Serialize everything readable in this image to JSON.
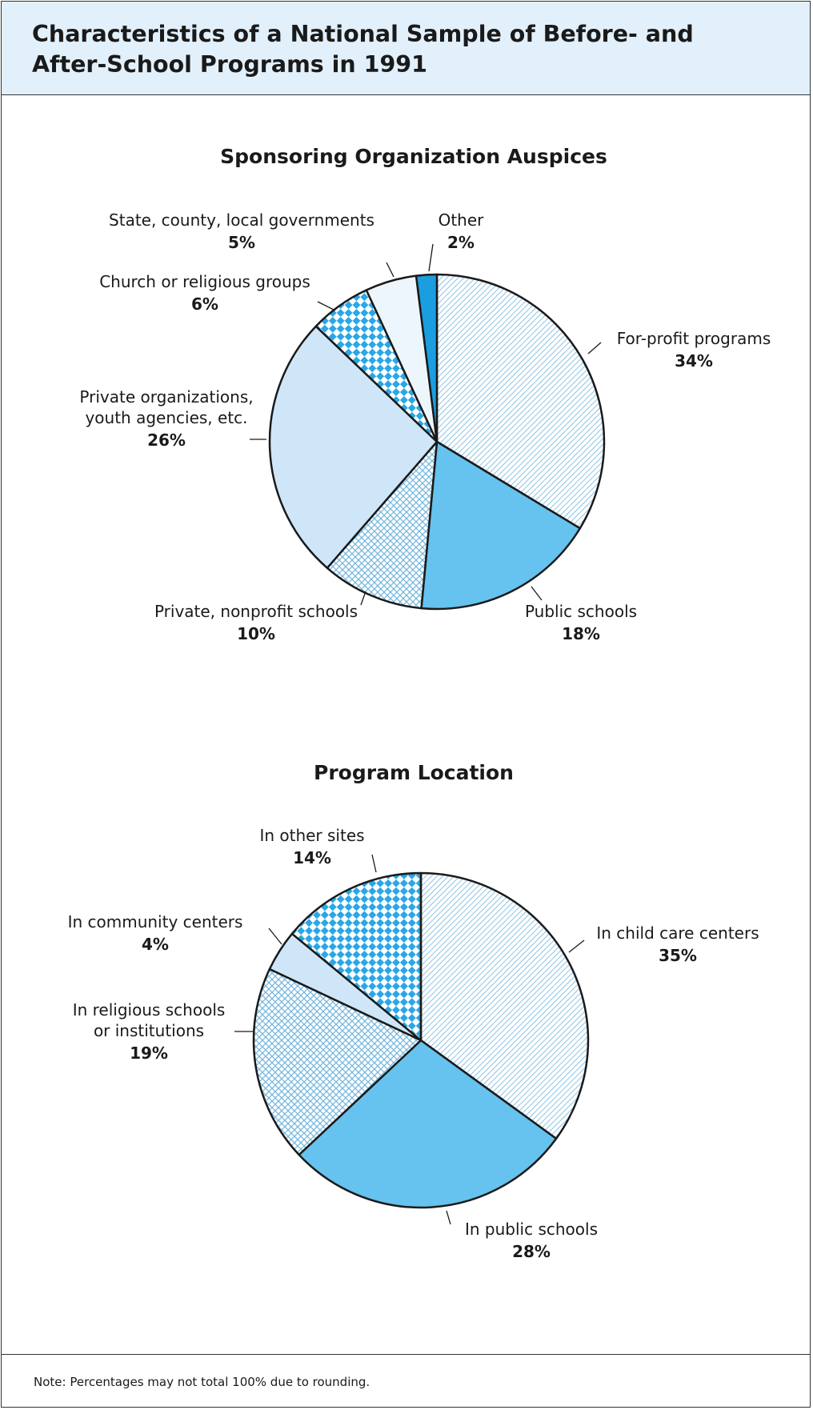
{
  "page": {
    "title": "Characteristics of a National Sample of Before- and After-School Programs in 1991",
    "note": "Note: Percentages may not total 100% due to rounding."
  },
  "chart_data": [
    {
      "type": "pie",
      "title": "Sponsoring Organization Auspices",
      "slices": [
        {
          "label": [
            "For-profit programs"
          ],
          "value": 34,
          "value_label": "34%",
          "fill": "diag"
        },
        {
          "label": [
            "Public schools"
          ],
          "value": 18,
          "value_label": "18%",
          "fill": "solid"
        },
        {
          "label": [
            "Private, nonprofit schools"
          ],
          "value": 10,
          "value_label": "10%",
          "fill": "lattice"
        },
        {
          "label": [
            "Private organizations,",
            "youth agencies, etc."
          ],
          "value": 26,
          "value_label": "26%",
          "fill": "light"
        },
        {
          "label": [
            "Church or religious groups"
          ],
          "value": 6,
          "value_label": "6%",
          "fill": "checker"
        },
        {
          "label": [
            "State, county, local governments"
          ],
          "value": 5,
          "value_label": "5%",
          "fill": "pale"
        },
        {
          "label": [
            "Other"
          ],
          "value": 2,
          "value_label": "2%",
          "fill": "dark"
        }
      ]
    },
    {
      "type": "pie",
      "title": "Program Location",
      "slices": [
        {
          "label": [
            "In child care centers"
          ],
          "value": 35,
          "value_label": "35%",
          "fill": "diag"
        },
        {
          "label": [
            "In public schools"
          ],
          "value": 28,
          "value_label": "28%",
          "fill": "solid"
        },
        {
          "label": [
            "In religious schools",
            "or institutions"
          ],
          "value": 19,
          "value_label": "19%",
          "fill": "lattice"
        },
        {
          "label": [
            "In community centers"
          ],
          "value": 4,
          "value_label": "4%",
          "fill": "light"
        },
        {
          "label": [
            "In other sites"
          ],
          "value": 14,
          "value_label": "14%",
          "fill": "checker"
        }
      ]
    }
  ],
  "colors": {
    "header_bg": "#e2f0fb",
    "solid_blue": "#66c2ee",
    "light_blue": "#cfe6f8",
    "pale_blue": "#eef6fd",
    "dark_blue": "#1a9ee0",
    "checker_blue": "#29a7e6",
    "pattern_blue": "#6fb4dc"
  }
}
